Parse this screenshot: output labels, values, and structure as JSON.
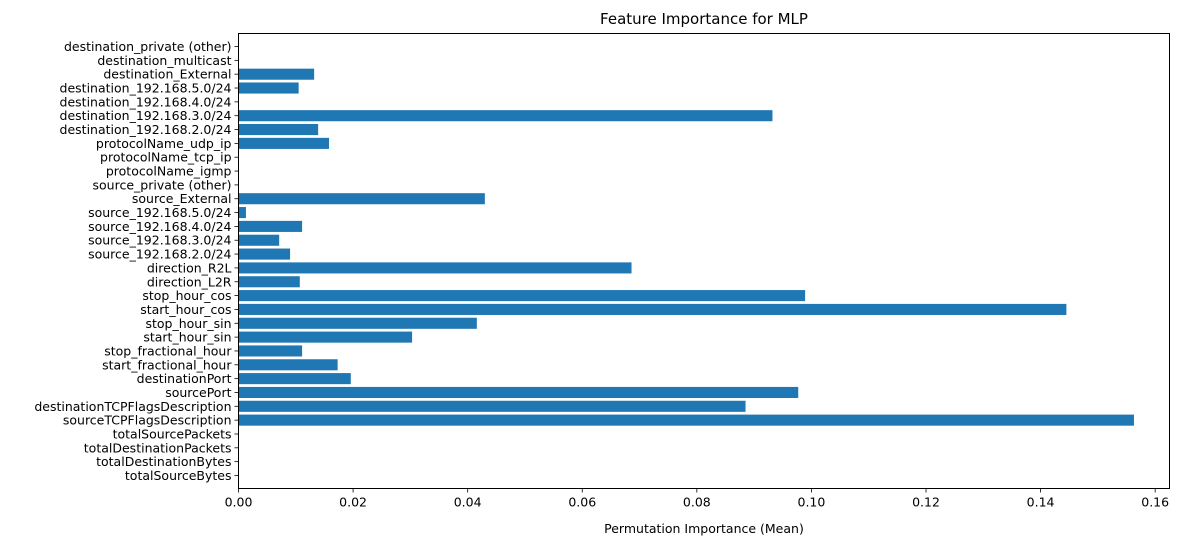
{
  "chart_data": {
    "type": "bar",
    "orientation": "horizontal",
    "title": "Feature Importance for MLP",
    "xlabel": "Permutation Importance (Mean)",
    "ylabel": "",
    "xlim": [
      0,
      0.1625
    ],
    "xticks": [
      0.0,
      0.02,
      0.04,
      0.06,
      0.08,
      0.1,
      0.12,
      0.14,
      0.16
    ],
    "xtick_labels": [
      "0.00",
      "0.02",
      "0.04",
      "0.06",
      "0.08",
      "0.10",
      "0.12",
      "0.14",
      "0.16"
    ],
    "grid": false,
    "bar_color": "#1f77b4",
    "categories": [
      "totalSourceBytes",
      "totalDestinationBytes",
      "totalDestinationPackets",
      "totalSourcePackets",
      "sourceTCPFlagsDescription",
      "destinationTCPFlagsDescription",
      "sourcePort",
      "destinationPort",
      "start_fractional_hour",
      "stop_fractional_hour",
      "start_hour_sin",
      "stop_hour_sin",
      "start_hour_cos",
      "stop_hour_cos",
      "direction_L2R",
      "direction_R2L",
      "source_192.168.2.0/24",
      "source_192.168.3.0/24",
      "source_192.168.4.0/24",
      "source_192.168.5.0/24",
      "source_External",
      "source_private (other)",
      "protocolName_igmp",
      "protocolName_tcp_ip",
      "protocolName_udp_ip",
      "destination_192.168.2.0/24",
      "destination_192.168.3.0/24",
      "destination_192.168.4.0/24",
      "destination_192.168.5.0/24",
      "destination_External",
      "destination_multicast",
      "destination_private (other)"
    ],
    "values": [
      0.0,
      0.0,
      0.0,
      0.0,
      0.1563,
      0.0885,
      0.0977,
      0.0196,
      0.0173,
      0.0111,
      0.0303,
      0.0416,
      0.1445,
      0.0989,
      0.0107,
      0.0686,
      0.009,
      0.0071,
      0.0111,
      0.0013,
      0.043,
      0.0,
      0.0,
      0.0,
      0.0158,
      0.0139,
      0.0932,
      0.0,
      0.0105,
      0.0132,
      0.0,
      0.0
    ]
  }
}
